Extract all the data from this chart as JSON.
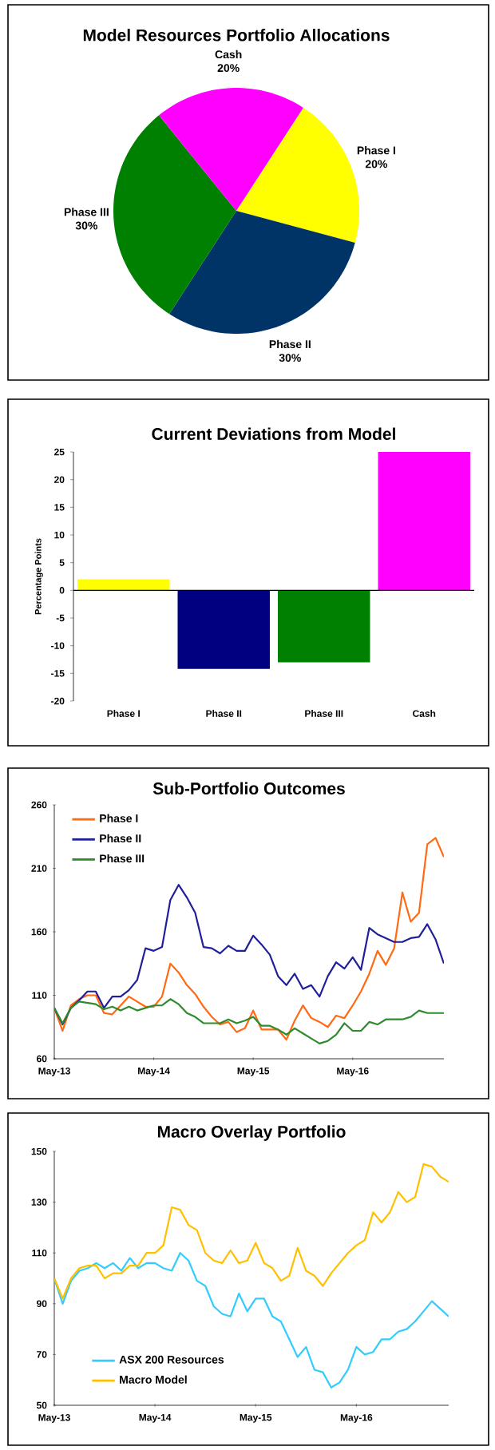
{
  "chart_data": [
    {
      "type": "pie",
      "title": "Model Resources Portfolio Allocations",
      "categories": [
        "Phase I",
        "Phase II",
        "Phase III",
        "Cash"
      ],
      "values": [
        20,
        30,
        30,
        20
      ],
      "colors": [
        "#ffff00",
        "#003366",
        "#008000",
        "#ff00ff"
      ],
      "value_labels": [
        "20%",
        "30%",
        "30%",
        "20%"
      ]
    },
    {
      "type": "bar",
      "title": "Current Deviations from Model",
      "ylabel": "Percentage Points",
      "categories": [
        "Phase I",
        "Phase II",
        "Phase III",
        "Cash"
      ],
      "values": [
        2,
        -14.2,
        -13,
        25
      ],
      "colors": [
        "#ffff00",
        "#000080",
        "#008000",
        "#ff00ff"
      ],
      "ylim": [
        -20,
        25
      ],
      "yticks": [
        -20,
        -15,
        -10,
        -5,
        0,
        5,
        10,
        15,
        20,
        25
      ]
    },
    {
      "type": "line",
      "title": "Sub-Portfolio Outcomes",
      "legend": "top left",
      "x": [
        "2013-05",
        "2013-06",
        "2013-07",
        "2013-08",
        "2013-09",
        "2013-10",
        "2013-11",
        "2013-12",
        "2014-01",
        "2014-02",
        "2014-03",
        "2014-04",
        "2014-05",
        "2014-06",
        "2014-07",
        "2014-08",
        "2014-09",
        "2014-10",
        "2014-11",
        "2014-12",
        "2015-01",
        "2015-02",
        "2015-03",
        "2015-04",
        "2015-05",
        "2015-06",
        "2015-07",
        "2015-08",
        "2015-09",
        "2015-10",
        "2015-11",
        "2015-12",
        "2016-01",
        "2016-02",
        "2016-03",
        "2016-04",
        "2016-05",
        "2016-06",
        "2016-07",
        "2016-08",
        "2016-09",
        "2016-10",
        "2016-11",
        "2016-12",
        "2017-01",
        "2017-02",
        "2017-03",
        "2017-04"
      ],
      "xlim": [
        "2013-05",
        "2017-04"
      ],
      "xticks": [
        {
          "value": "2013-05",
          "label": "May-13"
        },
        {
          "value": "2014-05",
          "label": "May-14"
        },
        {
          "value": "2015-05",
          "label": "May-15"
        },
        {
          "value": "2016-05",
          "label": "May-16"
        }
      ],
      "ylim": [
        60,
        260
      ],
      "yticks": [
        60,
        110,
        160,
        210,
        260
      ],
      "series": [
        {
          "name": "Phase I",
          "color": "#ff6a13",
          "values": [
            100,
            82,
            102,
            107,
            110,
            110,
            96,
            95,
            102,
            109,
            105,
            101,
            101,
            109,
            135,
            128,
            118,
            111,
            101,
            93,
            87,
            89,
            81,
            84,
            98,
            83,
            83,
            83,
            75,
            90,
            102,
            92,
            89,
            85,
            94,
            92,
            102,
            113,
            127,
            145,
            134,
            147,
            191,
            168,
            175,
            229,
            234,
            219
          ]
        },
        {
          "name": "Phase II",
          "color": "#1f1f99",
          "values": [
            100,
            87,
            100,
            106,
            113,
            113,
            100,
            109,
            109,
            114,
            122,
            147,
            145,
            148,
            185,
            197,
            187,
            175,
            148,
            147,
            143,
            149,
            145,
            145,
            157,
            150,
            142,
            125,
            118,
            127,
            115,
            118,
            109,
            125,
            136,
            131,
            140,
            130,
            163,
            158,
            155,
            152,
            152,
            155,
            156,
            166,
            154,
            135
          ]
        },
        {
          "name": "Phase III",
          "color": "#2e8b2e",
          "values": [
            100,
            88,
            100,
            105,
            104,
            103,
            99,
            101,
            98,
            101,
            98,
            100,
            102,
            102,
            107,
            103,
            96,
            93,
            88,
            88,
            88,
            91,
            88,
            90,
            93,
            86,
            86,
            83,
            79,
            84,
            80,
            76,
            72,
            74,
            79,
            88,
            82,
            82,
            89,
            87,
            91,
            91,
            91,
            93,
            98,
            96,
            96,
            96
          ]
        }
      ]
    },
    {
      "type": "line",
      "title": "Macro Overlay Portfolio",
      "legend": "bottom left",
      "x": [
        "2013-05",
        "2013-06",
        "2013-07",
        "2013-08",
        "2013-09",
        "2013-10",
        "2013-11",
        "2013-12",
        "2014-01",
        "2014-02",
        "2014-03",
        "2014-04",
        "2014-05",
        "2014-06",
        "2014-07",
        "2014-08",
        "2014-09",
        "2014-10",
        "2014-11",
        "2014-12",
        "2015-01",
        "2015-02",
        "2015-03",
        "2015-04",
        "2015-05",
        "2015-06",
        "2015-07",
        "2015-08",
        "2015-09",
        "2015-10",
        "2015-11",
        "2015-12",
        "2016-01",
        "2016-02",
        "2016-03",
        "2016-04",
        "2016-05",
        "2016-06",
        "2016-07",
        "2016-08",
        "2016-09",
        "2016-10",
        "2016-11",
        "2016-12",
        "2017-01",
        "2017-02",
        "2017-03",
        "2017-04"
      ],
      "xlim": [
        "2013-05",
        "2017-04"
      ],
      "xticks": [
        {
          "value": "2013-05",
          "label": "May-13"
        },
        {
          "value": "2014-05",
          "label": "May-14"
        },
        {
          "value": "2015-05",
          "label": "May-15"
        },
        {
          "value": "2016-05",
          "label": "May-16"
        }
      ],
      "ylim": [
        50,
        150
      ],
      "yticks": [
        50,
        70,
        90,
        110,
        130,
        150
      ],
      "series": [
        {
          "name": "ASX 200 Resources",
          "color": "#33ccff",
          "values": [
            100,
            90,
            99,
            103,
            104,
            106,
            104,
            106,
            103,
            108,
            104,
            106,
            106,
            104,
            103,
            110,
            107,
            99,
            97,
            89,
            86,
            85,
            94,
            87,
            92,
            92,
            85,
            83,
            76,
            69,
            73,
            64,
            63,
            57,
            59,
            64,
            73,
            70,
            71,
            76,
            76,
            79,
            80,
            83,
            87,
            91,
            88,
            85
          ]
        },
        {
          "name": "Macro Model",
          "color": "#ffc000",
          "values": [
            100,
            92,
            100,
            104,
            105,
            105,
            100,
            102,
            102,
            105,
            105,
            110,
            110,
            113,
            128,
            127,
            121,
            119,
            110,
            107,
            106,
            111,
            106,
            107,
            114,
            106,
            104,
            99,
            101,
            112,
            103,
            101,
            97,
            102,
            106,
            110,
            113,
            115,
            126,
            122,
            126,
            134,
            130,
            132,
            145,
            144,
            140,
            138
          ]
        }
      ]
    }
  ]
}
